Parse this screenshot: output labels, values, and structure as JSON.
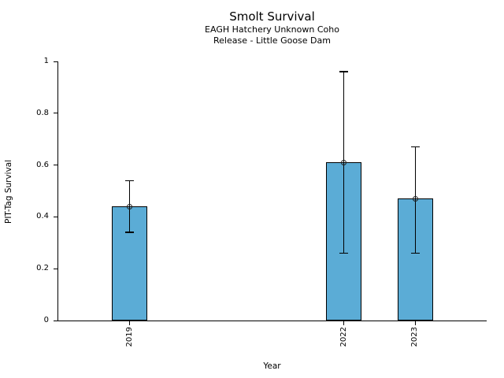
{
  "chart_data": {
    "type": "bar",
    "title": "Smolt Survival",
    "subtitle": [
      "EAGH Hatchery Unknown Coho",
      "Release - Little Goose Dam"
    ],
    "xlabel": "Year",
    "ylabel": "PIT-Tag Survival",
    "categories": [
      "2019",
      "2022",
      "2023"
    ],
    "x_values": [
      2019,
      2022,
      2023
    ],
    "values": [
      0.44,
      0.61,
      0.47
    ],
    "error_low": [
      0.34,
      0.26,
      0.26
    ],
    "error_high": [
      0.54,
      0.96,
      0.67
    ],
    "marker": "open-circle",
    "bar_width_years": 0.5,
    "xlim": [
      2018,
      2024
    ],
    "ylim": [
      0,
      1
    ],
    "ytick_values": [
      0,
      0.2,
      0.4,
      0.6,
      0.8,
      1
    ],
    "ytick_labels": [
      "0",
      "0.2",
      "0.4",
      "0.6",
      "0.8",
      "1"
    ],
    "grid": false,
    "legend": "none",
    "colors": {
      "bar_fill": "#5BACD6",
      "bar_edge": "#000000",
      "error_bar": "#000000",
      "marker_edge": "#1F1F1F",
      "axis": "#000000",
      "text": "#000000",
      "background": "#FFFFFF"
    }
  }
}
